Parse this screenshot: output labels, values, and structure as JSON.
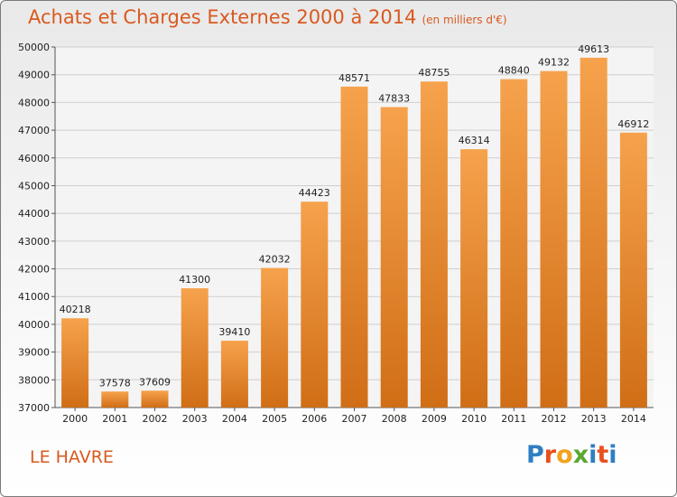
{
  "title": "Achats et Charges Externes 2000 à 2014",
  "subtitle": "(en milliers d'€)",
  "city": "LE HAVRE",
  "logo": {
    "text": "Proxiti",
    "letters": [
      "P",
      "r",
      "o",
      "x",
      "i",
      "t",
      "i"
    ],
    "colors": [
      "#2e7fc1",
      "#e8501e",
      "#f2a21c",
      "#5aa832",
      "#2e7fc1",
      "#e8501e",
      "#2e7fc1"
    ]
  },
  "colors": {
    "bar_top": "#f6a24c",
    "bar_bottom": "#d06e16",
    "title": "#d9591e"
  },
  "chart_data": {
    "type": "bar",
    "title": "Achats et Charges Externes 2000 à 2014",
    "subtitle": "(en milliers d'€)",
    "categories": [
      "2000",
      "2001",
      "2002",
      "2003",
      "2004",
      "2005",
      "2006",
      "2007",
      "2008",
      "2009",
      "2010",
      "2011",
      "2012",
      "2013",
      "2014"
    ],
    "values": [
      40218,
      37578,
      37609,
      41300,
      39410,
      42032,
      44423,
      48571,
      47833,
      48755,
      46314,
      48840,
      49132,
      49613,
      46912
    ],
    "ylim": [
      37000,
      50000
    ],
    "yticks": [
      37000,
      38000,
      39000,
      40000,
      41000,
      42000,
      43000,
      44000,
      45000,
      46000,
      47000,
      48000,
      49000,
      50000
    ],
    "grid": true,
    "xlabel": "",
    "ylabel": ""
  }
}
